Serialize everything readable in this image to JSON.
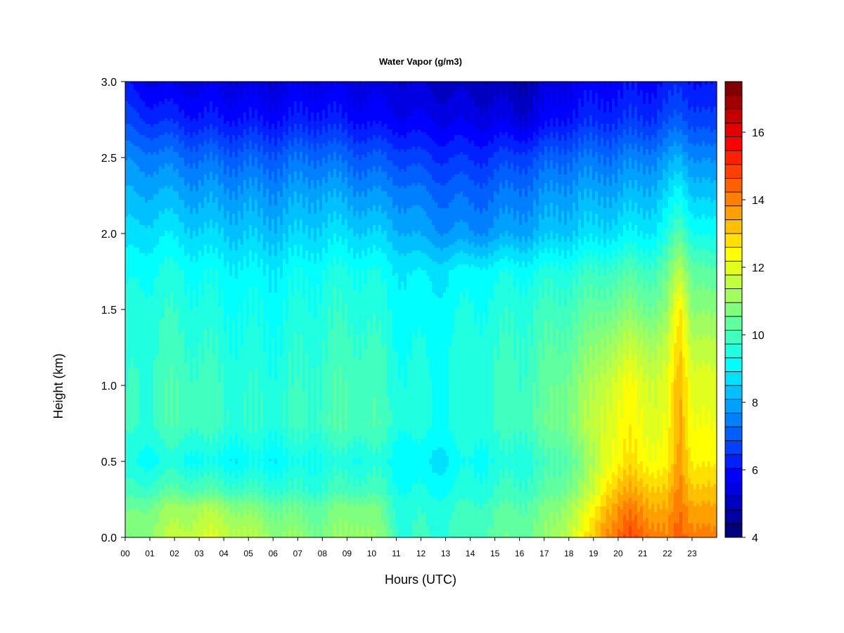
{
  "chart_data": {
    "type": "heatmap",
    "title": "Water Vapor (g/m3)",
    "xlabel": "Hours (UTC)",
    "ylabel": "Height (km)",
    "x_ticks": [
      "00",
      "01",
      "02",
      "03",
      "04",
      "05",
      "06",
      "07",
      "08",
      "09",
      "10",
      "11",
      "12",
      "13",
      "14",
      "15",
      "16",
      "17",
      "18",
      "19",
      "20",
      "21",
      "22",
      "23"
    ],
    "y_ticks": [
      "0.0",
      "0.5",
      "1.0",
      "1.5",
      "2.0",
      "2.5",
      "3.0"
    ],
    "xlim": [
      0,
      24
    ],
    "ylim": [
      0,
      3.0
    ],
    "colorbar": {
      "range": [
        4,
        17.5
      ],
      "step": 0.5,
      "ticks": [
        "4",
        "6",
        "8",
        "10",
        "12",
        "14",
        "16"
      ],
      "colors": [
        "#00007F",
        "#0000A0",
        "#0000C2",
        "#0000E3",
        "#0000FF",
        "#0020FF",
        "#0040FF",
        "#0060FF",
        "#0080FF",
        "#00A0FF",
        "#00C0FF",
        "#00E0FF",
        "#00FFFF",
        "#20FFDF",
        "#40FFBF",
        "#60FF9F",
        "#80FF7F",
        "#A0FF5F",
        "#C0FF3F",
        "#E0FF1F",
        "#FFFF00",
        "#FFE000",
        "#FFC000",
        "#FFA000",
        "#FF8000",
        "#FF6000",
        "#FF4000",
        "#FF2000",
        "#FF0000",
        "#E30000",
        "#C20000",
        "#A00000",
        "#800000"
      ]
    },
    "heights_km": [
      0.0,
      0.1,
      0.2,
      0.3,
      0.5,
      0.75,
      1.0,
      1.25,
      1.5,
      1.75,
      2.0,
      2.25,
      2.5,
      2.75,
      3.0
    ],
    "hours": [
      0,
      0.5,
      1,
      1.5,
      2,
      2.5,
      3,
      3.5,
      4,
      4.5,
      5,
      5.5,
      6,
      6.5,
      7,
      7.5,
      8,
      8.5,
      9,
      9.5,
      10,
      10.5,
      11,
      11.5,
      12,
      12.5,
      13,
      13.5,
      14,
      14.5,
      15,
      15.5,
      16,
      16.5,
      17,
      17.5,
      18,
      18.5,
      19,
      19.5,
      20,
      20.5,
      21,
      21.5,
      22,
      22.5,
      23,
      23.5,
      23.8
    ],
    "values_g_m3": [
      [
        12.2,
        12.4,
        12.6,
        12.9,
        13.1,
        13.3,
        13.5,
        13.5,
        13.4,
        13.2,
        13.0,
        12.8,
        12.6,
        12.5,
        12.4,
        12.3,
        12.2,
        12.4,
        12.6,
        12.8,
        12.5,
        12.1,
        11.2,
        11.0,
        11.0,
        11.0,
        11.1,
        11.2,
        11.3,
        11.5,
        11.7,
        11.8,
        11.9,
        12.0,
        12.3,
        12.7,
        13.5,
        14.0,
        15.0,
        16.2,
        16.6,
        17.0,
        16.7,
        16.4,
        16.0,
        16.8,
        16.4,
        16.2,
        16.0
      ],
      [
        12.0,
        12.2,
        12.4,
        12.7,
        12.9,
        13.0,
        13.2,
        13.2,
        13.1,
        12.9,
        12.7,
        12.5,
        12.3,
        12.2,
        12.1,
        12.0,
        12.0,
        12.2,
        12.4,
        12.6,
        12.3,
        11.9,
        11.1,
        10.9,
        10.9,
        10.9,
        11.0,
        11.1,
        11.2,
        11.4,
        11.6,
        11.7,
        11.8,
        11.9,
        12.2,
        12.6,
        13.2,
        13.7,
        14.6,
        15.8,
        16.2,
        16.6,
        16.3,
        16.0,
        15.7,
        16.6,
        16.1,
        15.9,
        15.7
      ],
      [
        11.7,
        11.9,
        12.1,
        12.4,
        12.6,
        12.7,
        12.8,
        12.8,
        12.6,
        12.4,
        12.2,
        12.0,
        11.9,
        11.9,
        11.8,
        11.8,
        11.8,
        12.0,
        12.2,
        12.3,
        12.1,
        11.7,
        11.0,
        10.8,
        10.8,
        10.8,
        10.9,
        11.0,
        11.1,
        11.2,
        11.4,
        11.5,
        11.6,
        11.8,
        12.0,
        12.3,
        12.9,
        13.3,
        14.1,
        15.4,
        15.9,
        16.1,
        15.9,
        15.6,
        15.4,
        16.4,
        15.8,
        15.6,
        15.4
      ],
      [
        11.1,
        11.2,
        11.3,
        11.5,
        11.6,
        11.6,
        11.6,
        11.5,
        11.4,
        11.3,
        11.2,
        11.1,
        11.1,
        11.0,
        11.0,
        11.0,
        11.1,
        11.2,
        11.3,
        11.4,
        11.3,
        11.1,
        10.7,
        10.5,
        10.5,
        10.4,
        10.5,
        10.6,
        10.7,
        10.8,
        11.0,
        11.1,
        11.2,
        11.3,
        11.5,
        11.8,
        12.3,
        12.6,
        13.4,
        14.8,
        15.3,
        15.5,
        15.4,
        15.2,
        15.0,
        16.2,
        15.3,
        15.1,
        15.0
      ],
      [
        10.5,
        10.4,
        10.4,
        10.5,
        10.6,
        10.5,
        10.4,
        10.3,
        10.3,
        10.2,
        10.2,
        10.3,
        10.2,
        10.3,
        10.4,
        10.5,
        10.6,
        10.6,
        10.7,
        10.7,
        10.7,
        10.6,
        10.3,
        10.1,
        10.0,
        9.9,
        10.0,
        10.2,
        10.4,
        10.5,
        10.6,
        10.7,
        10.8,
        10.9,
        11.1,
        11.4,
        11.8,
        12.1,
        12.8,
        13.9,
        14.3,
        14.6,
        14.4,
        14.2,
        14.2,
        15.8,
        14.6,
        14.4,
        14.2
      ],
      [
        10.9,
        11.0,
        11.1,
        11.3,
        11.4,
        11.4,
        11.3,
        11.2,
        11.1,
        11.0,
        10.9,
        10.9,
        10.9,
        11.0,
        11.1,
        11.2,
        11.3,
        11.4,
        11.5,
        11.5,
        11.4,
        11.2,
        10.9,
        10.7,
        10.6,
        10.5,
        10.6,
        10.7,
        10.8,
        10.9,
        11.0,
        11.1,
        11.3,
        11.5,
        11.7,
        12.0,
        12.4,
        12.7,
        13.2,
        13.8,
        14.0,
        14.2,
        14.0,
        13.8,
        13.9,
        15.6,
        14.2,
        14.0,
        13.8
      ],
      [
        10.8,
        11.0,
        11.1,
        11.3,
        11.4,
        11.3,
        11.2,
        11.1,
        11.0,
        10.9,
        10.8,
        10.8,
        10.8,
        10.9,
        11.0,
        11.1,
        11.2,
        11.3,
        11.4,
        11.4,
        11.3,
        11.1,
        10.8,
        10.6,
        10.5,
        10.5,
        10.6,
        10.7,
        10.8,
        10.9,
        11.0,
        11.1,
        11.2,
        11.4,
        11.6,
        11.9,
        12.2,
        12.5,
        12.9,
        13.5,
        13.8,
        14.0,
        13.8,
        13.6,
        13.7,
        15.5,
        14.0,
        13.8,
        13.6
      ],
      [
        10.7,
        10.9,
        11.0,
        11.1,
        11.2,
        11.1,
        11.0,
        10.9,
        10.8,
        10.7,
        10.6,
        10.6,
        10.6,
        10.7,
        10.8,
        10.9,
        11.0,
        11.1,
        11.2,
        11.2,
        11.1,
        10.9,
        10.6,
        10.5,
        10.4,
        10.4,
        10.5,
        10.6,
        10.7,
        10.8,
        10.9,
        11.0,
        11.1,
        11.2,
        11.4,
        11.6,
        11.8,
        12.0,
        12.3,
        12.8,
        13.0,
        13.2,
        13.1,
        13.0,
        13.2,
        15.0,
        13.4,
        13.2,
        13.0
      ],
      [
        10.5,
        10.7,
        10.8,
        10.9,
        10.9,
        10.8,
        10.7,
        10.6,
        10.5,
        10.5,
        10.4,
        10.4,
        10.4,
        10.5,
        10.6,
        10.7,
        10.8,
        10.9,
        10.9,
        10.9,
        10.8,
        10.6,
        10.4,
        10.3,
        10.2,
        10.2,
        10.3,
        10.4,
        10.5,
        10.6,
        10.7,
        10.8,
        10.9,
        11.0,
        11.1,
        11.2,
        11.4,
        11.5,
        11.7,
        12.0,
        12.1,
        12.2,
        12.1,
        12.1,
        12.4,
        14.6,
        12.6,
        12.4,
        12.2
      ],
      [
        10.2,
        10.4,
        10.5,
        10.6,
        10.6,
        10.5,
        10.4,
        10.3,
        10.3,
        10.2,
        10.1,
        10.1,
        10.1,
        10.2,
        10.3,
        10.4,
        10.5,
        10.6,
        10.6,
        10.6,
        10.5,
        10.3,
        10.1,
        10.0,
        9.9,
        9.9,
        10.0,
        10.1,
        10.2,
        10.3,
        10.3,
        10.4,
        10.4,
        10.5,
        10.6,
        10.7,
        10.8,
        10.9,
        11.0,
        11.2,
        11.3,
        11.4,
        11.3,
        11.4,
        11.8,
        13.2,
        12.0,
        11.7,
        11.4
      ],
      [
        9.6,
        9.7,
        9.8,
        9.9,
        9.8,
        9.7,
        9.6,
        9.5,
        9.5,
        9.4,
        9.4,
        9.3,
        9.3,
        9.4,
        9.5,
        9.6,
        9.7,
        9.7,
        9.7,
        9.6,
        9.5,
        9.4,
        9.2,
        9.0,
        8.8,
        8.7,
        8.6,
        8.6,
        8.5,
        8.6,
        8.7,
        8.8,
        8.9,
        9.0,
        9.2,
        9.4,
        9.5,
        9.6,
        9.7,
        9.8,
        9.9,
        10.0,
        10.0,
        10.1,
        10.6,
        11.6,
        10.7,
        10.4,
        10.2
      ],
      [
        9.0,
        9.0,
        9.1,
        9.1,
        9.0,
        8.9,
        8.8,
        8.8,
        8.7,
        8.7,
        8.7,
        8.6,
        8.6,
        8.7,
        8.8,
        8.9,
        9.0,
        8.9,
        8.8,
        8.7,
        8.6,
        8.5,
        8.4,
        8.3,
        8.1,
        8.0,
        7.9,
        7.9,
        7.8,
        7.9,
        8.0,
        8.1,
        8.2,
        8.3,
        8.5,
        8.7,
        8.8,
        8.9,
        8.9,
        9.0,
        9.0,
        9.1,
        9.2,
        9.3,
        9.6,
        10.3,
        9.6,
        9.4,
        9.2
      ],
      [
        8.3,
        8.3,
        8.3,
        8.2,
        8.1,
        8.0,
        7.9,
        7.9,
        7.8,
        7.8,
        7.8,
        7.7,
        7.7,
        7.8,
        7.9,
        8.0,
        8.0,
        7.9,
        7.8,
        7.7,
        7.6,
        7.5,
        7.4,
        7.3,
        7.1,
        7.0,
        7.0,
        7.0,
        6.9,
        7.0,
        7.1,
        7.2,
        7.3,
        7.4,
        7.6,
        7.8,
        7.9,
        8.0,
        8.0,
        8.1,
        8.1,
        8.2,
        8.3,
        8.4,
        8.6,
        9.0,
        8.6,
        8.4,
        8.2
      ],
      [
        7.2,
        7.1,
        7.0,
        6.9,
        6.8,
        6.7,
        6.6,
        6.6,
        6.5,
        6.5,
        6.5,
        6.4,
        6.4,
        6.5,
        6.6,
        6.7,
        6.7,
        6.6,
        6.5,
        6.4,
        6.3,
        6.2,
        6.2,
        6.1,
        6.0,
        6.0,
        5.9,
        5.9,
        5.8,
        5.8,
        5.9,
        5.8,
        5.6,
        5.8,
        6.1,
        6.4,
        6.6,
        6.7,
        6.8,
        6.9,
        6.9,
        7.0,
        7.0,
        7.1,
        7.3,
        7.6,
        7.4,
        7.2,
        7.0
      ],
      [
        6.4,
        6.2,
        6.0,
        5.9,
        5.8,
        5.8,
        5.8,
        5.8,
        5.7,
        5.7,
        5.7,
        5.6,
        5.6,
        5.7,
        5.8,
        5.9,
        5.9,
        5.8,
        5.8,
        5.7,
        5.7,
        5.6,
        5.6,
        5.5,
        5.4,
        5.3,
        5.3,
        5.2,
        5.2,
        5.2,
        5.1,
        5.0,
        4.9,
        5.1,
        5.4,
        5.7,
        5.9,
        6.0,
        6.1,
        6.2,
        6.2,
        6.3,
        6.3,
        6.4,
        6.5,
        6.8,
        6.6,
        6.4,
        6.3
      ]
    ]
  }
}
